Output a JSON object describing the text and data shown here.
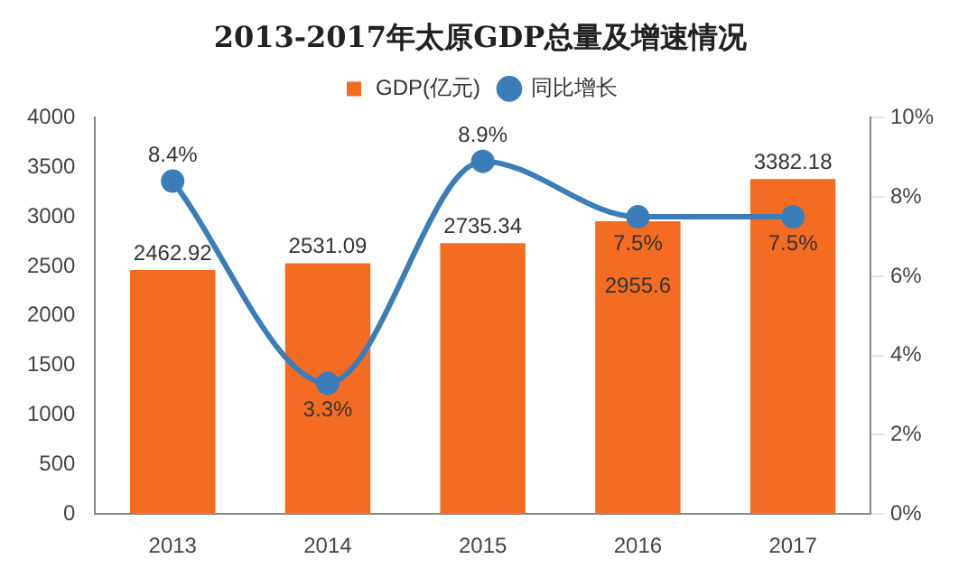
{
  "chart_data": {
    "type": "bar",
    "title": "2013-2017年太原GDP总量及增速情况",
    "categories": [
      "2013",
      "2014",
      "2015",
      "2016",
      "2017"
    ],
    "series": [
      {
        "name": "GDP(亿元)",
        "color": "#f36c21",
        "values": [
          2462.92,
          2531.09,
          2735.34,
          2955.6,
          3382.18
        ],
        "value_labels": [
          "2462.92",
          "2531.09",
          "2735.34",
          "2955.6",
          "3382.18"
        ]
      },
      {
        "name": "同比增长",
        "type": "line",
        "axis": "y2",
        "color": "#3a7db8",
        "values": [
          8.4,
          3.3,
          8.9,
          7.5,
          7.5
        ],
        "value_labels": [
          "8.4%",
          "3.3%",
          "8.9%",
          "7.5%",
          "7.5%"
        ],
        "marker": "circle"
      }
    ],
    "ylim": [
      0,
      4000
    ],
    "yticks": [
      0,
      500,
      1000,
      1500,
      2000,
      2500,
      3000,
      3500,
      4000
    ],
    "y2lim": [
      0,
      10
    ],
    "y2ticks": [
      {
        "value": 0,
        "label": "0%"
      },
      {
        "value": 2,
        "label": "2%"
      },
      {
        "value": 4,
        "label": "4%"
      },
      {
        "value": 6,
        "label": "6%"
      },
      {
        "value": 8,
        "label": "8%"
      },
      {
        "value": 10,
        "label": "10%"
      }
    ],
    "grid": false,
    "legend": "top"
  }
}
